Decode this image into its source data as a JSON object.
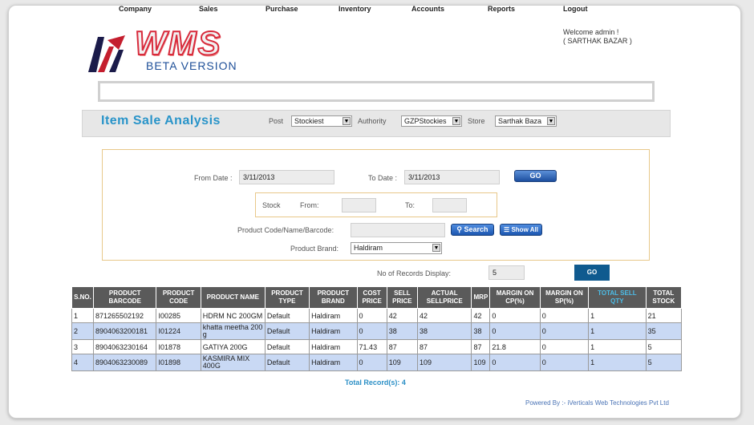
{
  "logo": {
    "wms": "WMS",
    "beta": "BETA VERSION"
  },
  "welcome": {
    "line1": "Welcome admin !",
    "line2": "( SARTHAK BAZAR )"
  },
  "menu": [
    "Company",
    "Sales",
    "Purchase",
    "Inventory",
    "Accounts",
    "Reports",
    "Logout"
  ],
  "title": "Item Sale Analysis",
  "filters_top": {
    "post_label": "Post",
    "post_value": "Stockiest",
    "authority_label": "Authority",
    "authority_value": "GZPStockies",
    "store_label": "Store",
    "store_value": "Sarthak Baza"
  },
  "form": {
    "from_date_label": "From Date :",
    "from_date": "3/11/2013",
    "to_date_label": "To Date :",
    "to_date": "3/11/2013",
    "go": "GO",
    "stock_label": "Stock",
    "stock_from_label": "From:",
    "stock_to_label": "To:",
    "product_label": "Product Code/Name/Barcode:",
    "search": "Search",
    "show_all": "Show All",
    "brand_label": "Product Brand:",
    "brand_value": "Haldiram",
    "records_label": "No of Records Display:",
    "records_value": "5",
    "go2": "GO"
  },
  "table": {
    "headers": [
      "S.NO.",
      "PRODUCT BARCODE",
      "PRODUCT CODE",
      "PRODUCT NAME",
      "PRODUCT TYPE",
      "PRODUCT BRAND",
      "COST PRICE",
      "SELL PRICE",
      "ACTUAL SELLPRICE",
      "MRP",
      "MARGIN ON CP(%)",
      "MARGIN ON SP(%)",
      "TOTAL SELL QTY",
      "TOTAL STOCK"
    ],
    "rows": [
      [
        "1",
        "871265502192",
        "I00285",
        "HDRM NC 200GM",
        "Default",
        "Haldiram",
        "0",
        "42",
        "42",
        "42",
        "0",
        "0",
        "1",
        "21"
      ],
      [
        "2",
        "8904063200181",
        "I01224",
        "khatta meetha 200 g",
        "Default",
        "Haldiram",
        "0",
        "38",
        "38",
        "38",
        "0",
        "0",
        "1",
        "35"
      ],
      [
        "3",
        "8904063230164",
        "I01878",
        "GATIYA 200G",
        "Default",
        "Haldiram",
        "71.43",
        "87",
        "87",
        "87",
        "21.8",
        "0",
        "1",
        "5"
      ],
      [
        "4",
        "8904063230089",
        "I01898",
        "KASMIRA MIX 400G",
        "Default",
        "Haldiram",
        "0",
        "109",
        "109",
        "109",
        "0",
        "0",
        "1",
        "5"
      ]
    ]
  },
  "total_records": "Total Record(s):  4",
  "powered_by": "Powered By :- iVerticals Web Technologies Pvt Ltd"
}
